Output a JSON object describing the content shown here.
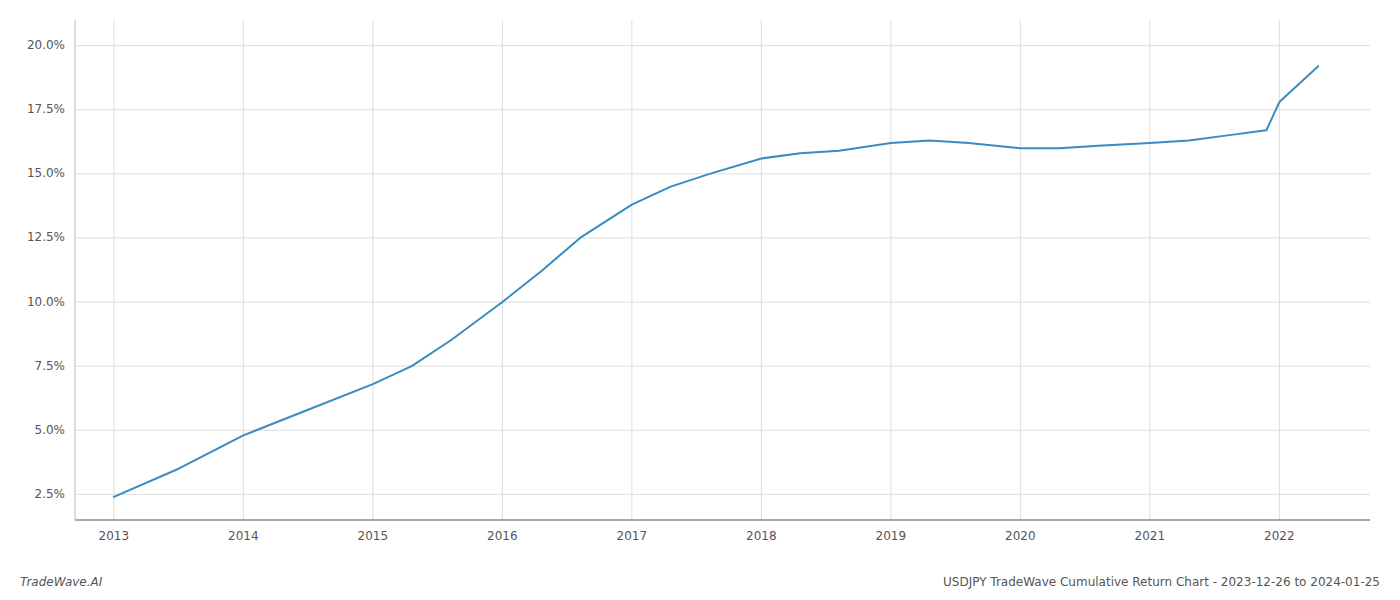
{
  "chart_data": {
    "type": "line",
    "x": [
      2013,
      2013.5,
      2014,
      2014.5,
      2015,
      2015.3,
      2015.6,
      2016,
      2016.3,
      2016.6,
      2017,
      2017.3,
      2017.6,
      2018,
      2018.3,
      2018.6,
      2019,
      2019.3,
      2019.6,
      2020,
      2020.3,
      2020.6,
      2021,
      2021.3,
      2021.6,
      2021.9,
      2022,
      2022.3
    ],
    "values": [
      2.4,
      3.5,
      4.8,
      5.8,
      6.8,
      7.5,
      8.5,
      10.0,
      11.2,
      12.5,
      13.8,
      14.5,
      15.0,
      15.6,
      15.8,
      15.9,
      16.2,
      16.3,
      16.2,
      16.0,
      16.0,
      16.1,
      16.2,
      16.3,
      16.5,
      16.7,
      17.8,
      19.2
    ],
    "color": "#3a8bbf",
    "grid": true,
    "xlim": [
      2012.7,
      2022.7
    ],
    "xticks": [
      2013,
      2014,
      2015,
      2016,
      2017,
      2018,
      2019,
      2020,
      2021,
      2022
    ],
    "ylim": [
      1.5,
      21.0
    ],
    "yticks": [
      {
        "value": 2.5,
        "label": "2.5%"
      },
      {
        "value": 5.0,
        "label": "5.0%"
      },
      {
        "value": 7.5,
        "label": "7.5%"
      },
      {
        "value": 10.0,
        "label": "10.0%"
      },
      {
        "value": 12.5,
        "label": "12.5%"
      },
      {
        "value": 15.0,
        "label": "15.0%"
      },
      {
        "value": 17.5,
        "label": "17.5%"
      },
      {
        "value": 20.0,
        "label": "20.0%"
      }
    ],
    "annotations": [
      "TradeWave.AI",
      "USDJPY TradeWave Cumulative Return Chart - 2023-12-26 to 2024-01-25"
    ]
  }
}
